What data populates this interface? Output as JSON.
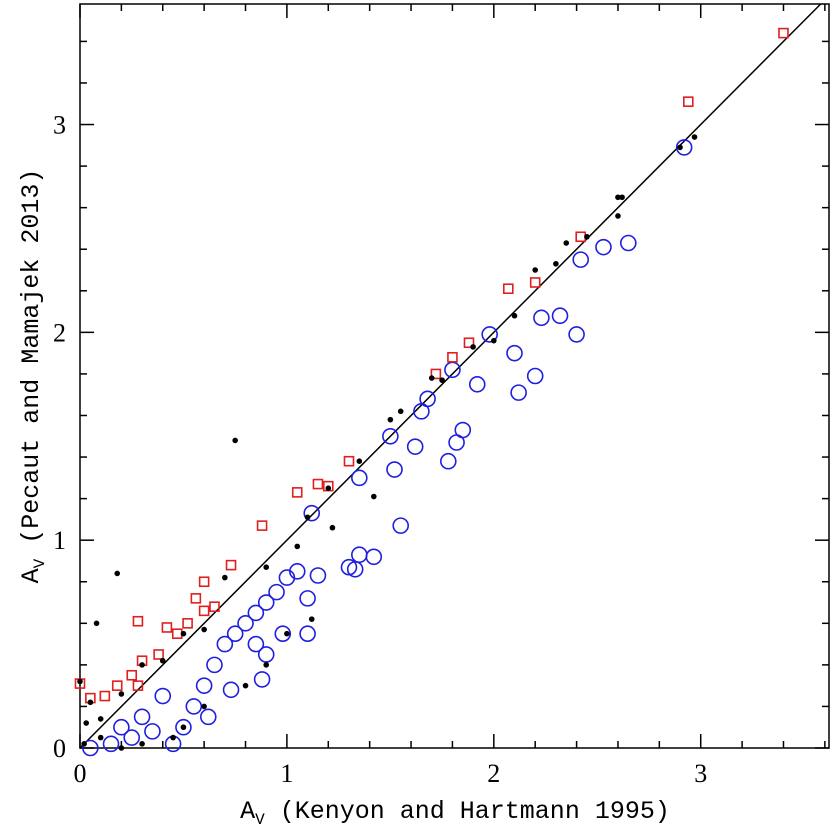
{
  "chart_data": {
    "type": "scatter",
    "x_label": {
      "symbol": "A",
      "subscript": "V",
      "text": " (Kenyon and Hartmann 1995)"
    },
    "y_label": {
      "symbol": "A",
      "subscript": "V",
      "text": " (Pecaut and Mamajek 2013)"
    },
    "xlim": [
      0,
      3.62
    ],
    "ylim": [
      0,
      3.58
    ],
    "xticks": [
      0,
      1,
      2,
      3
    ],
    "yticks": [
      0,
      1,
      2,
      3
    ],
    "xminor": [
      0.2,
      0.4,
      0.6,
      0.8,
      1.2,
      1.4,
      1.6,
      1.8,
      2.2,
      2.4,
      2.6,
      2.8,
      3.2,
      3.4,
      3.6
    ],
    "yminor": [
      0.2,
      0.4,
      0.6,
      0.8,
      1.2,
      1.4,
      1.6,
      1.8,
      2.2,
      2.4,
      2.6,
      2.8,
      3.2,
      3.4
    ],
    "reference_line": {
      "x": [
        0,
        3.58
      ],
      "y": [
        0,
        3.58
      ],
      "color": "#000000"
    },
    "series": [
      {
        "marker": "dot",
        "color": "#000000",
        "x": [
          0,
          0.03,
          0.08,
          0.18,
          0.75,
          0.05,
          0.1,
          0.2,
          0.3,
          0.4,
          0.5,
          0.6,
          0.7,
          0.9,
          1.05,
          1.1,
          1.2,
          1.35,
          1.5,
          1.55,
          1.7,
          1.75,
          1.9,
          2.0,
          2.1,
          2.2,
          2.3,
          2.35,
          2.45,
          2.6,
          2.62,
          2.97,
          2.9,
          2.6,
          1.12,
          1.42,
          1.22,
          1.0,
          0.9,
          0.8,
          0.6,
          0.5,
          0.45,
          0.3,
          0.2,
          0.1,
          0.02
        ],
        "y": [
          0.32,
          0.12,
          0.6,
          0.84,
          1.48,
          0.22,
          0.14,
          0.26,
          0.4,
          0.42,
          0.55,
          0.57,
          0.82,
          0.87,
          0.97,
          1.11,
          1.25,
          1.38,
          1.58,
          1.62,
          1.78,
          1.77,
          1.93,
          1.96,
          2.08,
          2.3,
          2.33,
          2.43,
          2.46,
          2.65,
          2.65,
          2.94,
          2.89,
          2.56,
          0.62,
          1.21,
          1.06,
          0.55,
          0.4,
          0.3,
          0.2,
          0.1,
          0.05,
          0.02,
          0.0,
          0.05,
          0.02
        ]
      },
      {
        "marker": "circle",
        "color": "#1f1fe0",
        "x": [
          0.05,
          0.15,
          0.25,
          0.35,
          0.45,
          0.5,
          0.55,
          0.6,
          0.65,
          0.7,
          0.75,
          0.8,
          0.85,
          0.9,
          0.95,
          1.0,
          1.05,
          1.1,
          1.15,
          1.3,
          1.35,
          1.42,
          1.33,
          1.55,
          1.12,
          1.35,
          1.5,
          1.52,
          1.62,
          1.65,
          1.68,
          1.78,
          1.82,
          1.85,
          1.8,
          1.92,
          1.98,
          2.1,
          2.12,
          2.2,
          2.32,
          2.23,
          2.4,
          2.42,
          2.53,
          2.65,
          2.92,
          0.88,
          0.9,
          0.4,
          0.3,
          0.2,
          0.98,
          0.73,
          0.62,
          0.85,
          1.1
        ],
        "y": [
          0.0,
          0.02,
          0.05,
          0.08,
          0.02,
          0.1,
          0.2,
          0.3,
          0.4,
          0.5,
          0.55,
          0.6,
          0.65,
          0.7,
          0.75,
          0.82,
          0.85,
          0.72,
          0.83,
          0.87,
          0.93,
          0.92,
          0.86,
          1.07,
          1.13,
          1.3,
          1.5,
          1.34,
          1.45,
          1.62,
          1.68,
          1.38,
          1.47,
          1.53,
          1.82,
          1.75,
          1.99,
          1.9,
          1.71,
          1.79,
          2.08,
          2.07,
          1.99,
          2.35,
          2.41,
          2.43,
          2.89,
          0.33,
          0.45,
          0.25,
          0.15,
          0.1,
          0.55,
          0.28,
          0.15,
          0.5,
          0.55
        ]
      },
      {
        "marker": "square",
        "color": "#e01f1f",
        "x": [
          0,
          0.05,
          0.12,
          0.18,
          0.25,
          0.28,
          0.3,
          0.38,
          0.42,
          0.47,
          0.28,
          0.52,
          0.56,
          0.6,
          0.6,
          0.65,
          0.73,
          0.88,
          1.05,
          1.15,
          1.2,
          1.3,
          1.72,
          1.8,
          1.88,
          2.07,
          2.2,
          2.42,
          2.94,
          3.4
        ],
        "y": [
          0.31,
          0.24,
          0.25,
          0.3,
          0.35,
          0.3,
          0.42,
          0.45,
          0.58,
          0.55,
          0.61,
          0.6,
          0.72,
          0.8,
          0.66,
          0.68,
          0.88,
          1.07,
          1.23,
          1.27,
          1.26,
          1.38,
          1.8,
          1.88,
          1.95,
          2.21,
          2.24,
          2.46,
          3.11,
          3.44
        ]
      }
    ]
  }
}
